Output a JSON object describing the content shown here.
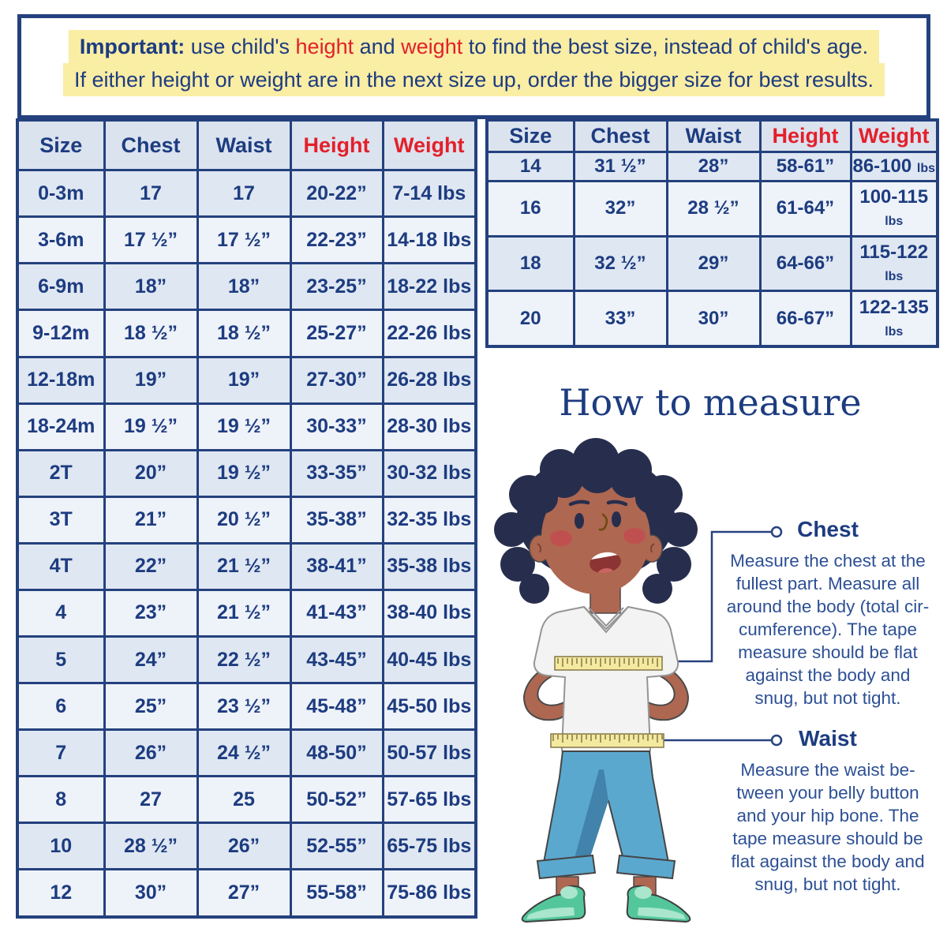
{
  "notice": {
    "important_label": "Important:",
    "line1_part1": " use child's ",
    "highlight_height": "height",
    "line1_part2": " and ",
    "highlight_weight": "weight",
    "line1_part3": " to find the best size, instead of child's age.",
    "line2": "If either height or weight are in the next size up, order the bigger size for best results."
  },
  "size_table_left": {
    "headers": [
      "Size",
      "Chest",
      "Waist",
      "Height",
      "Weight"
    ],
    "rows": [
      [
        "0-3m",
        "17",
        "17",
        "20-22”",
        "7-14 lbs"
      ],
      [
        "3-6m",
        "17 ½”",
        "17 ½”",
        "22-23”",
        "14-18 lbs"
      ],
      [
        "6-9m",
        "18”",
        "18”",
        "23-25”",
        "18-22 lbs"
      ],
      [
        "9-12m",
        "18 ½”",
        "18 ½”",
        "25-27”",
        "22-26 lbs"
      ],
      [
        "12-18m",
        "19”",
        "19”",
        "27-30”",
        "26-28 lbs"
      ],
      [
        "18-24m",
        "19 ½”",
        "19 ½”",
        "30-33”",
        "28-30 lbs"
      ],
      [
        "2T",
        "20”",
        "19 ½”",
        "33-35”",
        "30-32 lbs"
      ],
      [
        "3T",
        "21”",
        "20 ½”",
        "35-38”",
        "32-35 lbs"
      ],
      [
        "4T",
        "22”",
        "21 ½”",
        "38-41”",
        "35-38 lbs"
      ],
      [
        "4",
        "23”",
        "21 ½”",
        "41-43”",
        "38-40 lbs"
      ],
      [
        "5",
        "24”",
        "22 ½”",
        "43-45”",
        "40-45 lbs"
      ],
      [
        "6",
        "25”",
        "23 ½”",
        "45-48”",
        "45-50 lbs"
      ],
      [
        "7",
        "26”",
        "24 ½”",
        "48-50”",
        "50-57 lbs"
      ],
      [
        "8",
        "27",
        "25",
        "50-52”",
        "57-65 lbs"
      ],
      [
        "10",
        "28 ½”",
        "26”",
        "52-55”",
        "65-75 lbs"
      ],
      [
        "12",
        "30”",
        "27”",
        "55-58”",
        "75-86 lbs"
      ]
    ]
  },
  "size_table_right": {
    "headers": [
      "Size",
      "Chest",
      "Waist",
      "Height",
      "Weight"
    ],
    "weight_unit_split": true,
    "rows": [
      [
        "14",
        "31 ½”",
        "28”",
        "58-61”",
        "86-100",
        "lbs"
      ],
      [
        "16",
        "32”",
        "28 ½”",
        "61-64”",
        "100-115",
        "lbs"
      ],
      [
        "18",
        "32 ½”",
        "29”",
        "64-66”",
        "115-122",
        "lbs"
      ],
      [
        "20",
        "33”",
        "30”",
        "66-67”",
        "122-135",
        "lbs"
      ]
    ]
  },
  "how_to_measure": {
    "title": "How to measure",
    "chest_label": "Chest",
    "chest_text": "Measure the chest at the\nfullest part. Measure all\naround the body (total cir-\ncumference). The tape\nmeasure should be flat\nagainst the body and\nsnug, but not tight.",
    "waist_label": "Waist",
    "waist_text": "Measure the waist be-\ntween your belly button\nand your hip bone. The\ntape measure should be\nflat against the body and\nsnug, but not tight."
  },
  "colors": {
    "navy": "#1d3c80",
    "red": "#e3202a",
    "highlight_yellow": "#faeda4",
    "table_border": "#24417e",
    "row_light": "#eef2f9",
    "row_alt": "#dfe7f2",
    "header_row": "#dbe3ef",
    "body_text": "#2d5095",
    "tape_yellow": "#f5e9a0",
    "skin": "#ae6751",
    "hair": "#272e4d",
    "pants_blue": "#5ba8cf",
    "shoe_mint": "#53c79b"
  }
}
